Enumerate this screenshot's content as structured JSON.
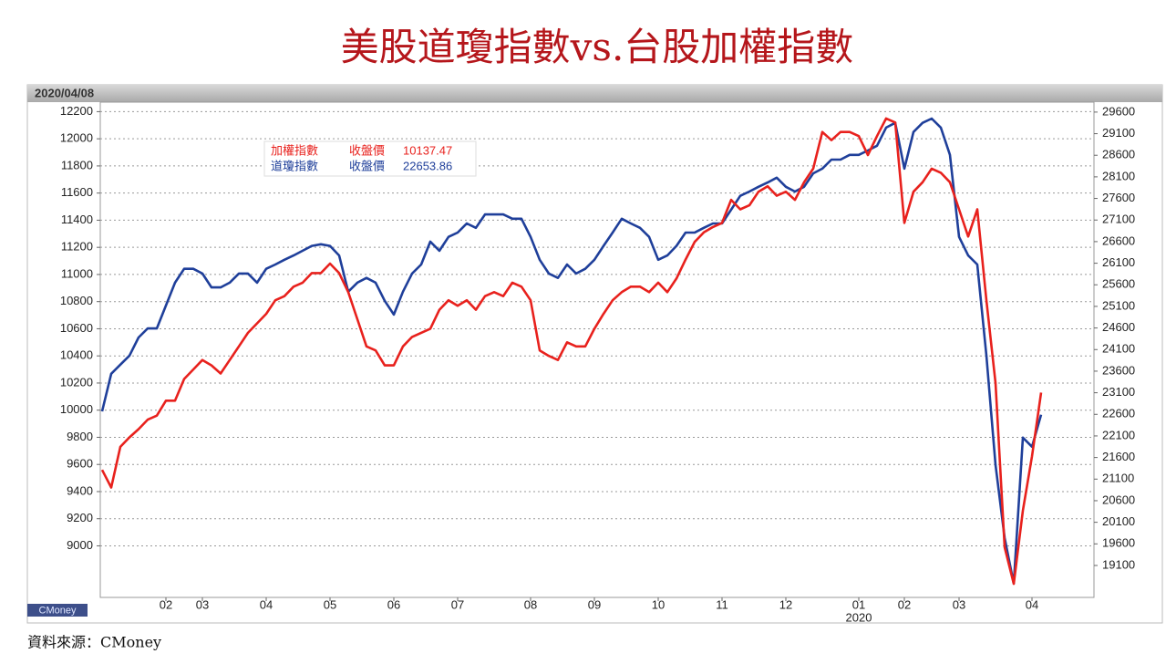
{
  "chart_data": {
    "type": "line",
    "title": "美股道瓊指數vs.台股加權指數",
    "date_label": "2020/04/08",
    "year_label": "2020",
    "watermark": "CMoney",
    "source": "資料來源：CMoney",
    "categories": [
      null,
      null,
      null,
      null,
      null,
      null,
      null,
      "02",
      null,
      null,
      null,
      "03",
      null,
      null,
      null,
      null,
      null,
      null,
      "04",
      null,
      null,
      null,
      null,
      null,
      null,
      "05",
      null,
      null,
      null,
      null,
      null,
      null,
      "06",
      null,
      null,
      null,
      null,
      null,
      null,
      "07",
      null,
      null,
      null,
      null,
      null,
      null,
      null,
      "08",
      null,
      null,
      null,
      null,
      null,
      null,
      "09",
      null,
      null,
      null,
      null,
      null,
      null,
      "10",
      null,
      null,
      null,
      null,
      null,
      null,
      "11",
      null,
      null,
      null,
      null,
      null,
      null,
      "12",
      null,
      null,
      null,
      null,
      null,
      null,
      null,
      "01",
      null,
      null,
      null,
      null,
      "02",
      null,
      null,
      null,
      null,
      null,
      "03",
      null,
      null,
      null,
      null,
      null,
      null,
      null,
      "04",
      null
    ],
    "series": [
      {
        "name": "加權指數",
        "close_label": "收盤價",
        "close": 10137.47,
        "color": "#e8211d",
        "values": [
          9560,
          9430,
          9730,
          9800,
          9860,
          9930,
          9960,
          10070,
          10070,
          10230,
          10300,
          10370,
          10330,
          10270,
          10370,
          10470,
          10570,
          10640,
          10710,
          10810,
          10840,
          10910,
          10940,
          11010,
          11010,
          11080,
          11010,
          10870,
          10670,
          10470,
          10440,
          10330,
          10330,
          10470,
          10540,
          10570,
          10600,
          10740,
          10810,
          10770,
          10810,
          10740,
          10840,
          10870,
          10840,
          10940,
          10910,
          10810,
          10440,
          10400,
          10370,
          10500,
          10470,
          10470,
          10600,
          10710,
          10810,
          10870,
          10910,
          10910,
          10870,
          10940,
          10870,
          10970,
          11110,
          11240,
          11310,
          11350,
          11380,
          11550,
          11480,
          11510,
          11610,
          11650,
          11580,
          11610,
          11550,
          11680,
          11780,
          12050,
          11990,
          12050,
          12050,
          12020,
          11880,
          12020,
          12150,
          12120,
          11380,
          11610,
          11680,
          11780,
          11750,
          11680,
          11480,
          11280,
          11480,
          10810,
          10200,
          8990,
          8720,
          9260,
          9660,
          10130
        ]
      },
      {
        "name": "道瓊指數",
        "close_label": "收盤價",
        "close": 22653.86,
        "color": "#1f3f9a",
        "axis": "y2",
        "values": [
          22670,
          23540,
          23750,
          23960,
          24380,
          24590,
          24590,
          25120,
          25650,
          25970,
          25970,
          25860,
          25540,
          25540,
          25650,
          25860,
          25860,
          25650,
          25970,
          26070,
          26180,
          26280,
          26390,
          26500,
          26540,
          26500,
          26280,
          25440,
          25650,
          25760,
          25650,
          25230,
          24910,
          25440,
          25860,
          26070,
          26600,
          26390,
          26710,
          26810,
          27020,
          26920,
          27230,
          27230,
          27230,
          27130,
          27130,
          26710,
          26180,
          25860,
          25760,
          26070,
          25860,
          25970,
          26180,
          26500,
          26810,
          27130,
          27020,
          26920,
          26710,
          26180,
          26280,
          26500,
          26810,
          26810,
          26920,
          27020,
          27020,
          27340,
          27660,
          27760,
          27870,
          27970,
          28080,
          27870,
          27760,
          27870,
          28180,
          28290,
          28500,
          28500,
          28610,
          28610,
          28710,
          28820,
          29240,
          29350,
          28290,
          29140,
          29350,
          29450,
          29240,
          28610,
          26710,
          26280,
          26070,
          23960,
          21430,
          19740,
          18680,
          22060,
          21850,
          22590
        ]
      }
    ],
    "ylim": [
      8620,
      12270
    ],
    "yticks": [
      9000,
      9200,
      9400,
      9600,
      9800,
      10000,
      10200,
      10400,
      10600,
      10800,
      11000,
      11200,
      11400,
      11600,
      11800,
      12000,
      12200
    ],
    "y2lim": [
      18360,
      29830
    ],
    "y2ticks": [
      19100,
      19600,
      20100,
      20600,
      21100,
      21600,
      22100,
      22600,
      23100,
      23600,
      24100,
      24600,
      25100,
      25600,
      26100,
      26600,
      27100,
      27600,
      28100,
      28600,
      29100,
      29600
    ],
    "grid": true
  }
}
